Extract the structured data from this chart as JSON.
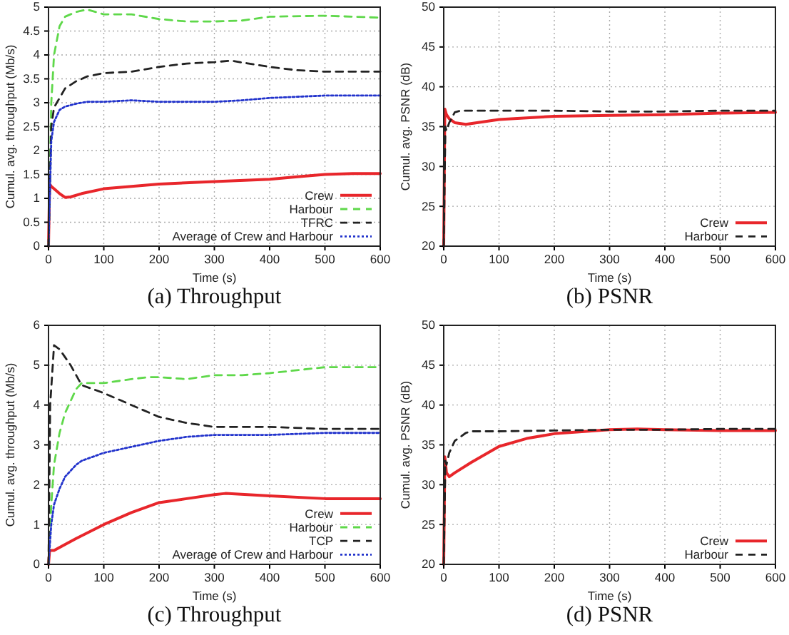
{
  "chart_data": [
    {
      "type": "line",
      "title": "(a)  Throughput",
      "xlabel": "Time (s)",
      "ylabel": "Cumul. avg. throughput (Mb/s)",
      "xlim": [
        0,
        600
      ],
      "xticks": [
        0,
        100,
        200,
        300,
        400,
        500,
        600
      ],
      "ylim": [
        0,
        5
      ],
      "yticks": [
        0,
        0.5,
        1,
        1.5,
        2,
        2.5,
        3,
        3.5,
        4,
        4.5,
        5
      ],
      "grid": true,
      "legend": "bottom right",
      "series": [
        {
          "name": "Crew",
          "color": "#e8262b",
          "line_style": "solid",
          "x": [
            0,
            2,
            5,
            10,
            20,
            30,
            40,
            60,
            100,
            150,
            200,
            300,
            400,
            450,
            500,
            550,
            600
          ],
          "values": [
            0,
            1.3,
            1.25,
            1.2,
            1.1,
            1.02,
            1.03,
            1.1,
            1.2,
            1.25,
            1.3,
            1.35,
            1.4,
            1.45,
            1.5,
            1.52,
            1.52
          ]
        },
        {
          "name": "Harbour",
          "color": "#5fd84a",
          "line_style": "dashed",
          "x": [
            0,
            5,
            10,
            20,
            30,
            50,
            70,
            100,
            150,
            200,
            250,
            300,
            350,
            400,
            500,
            600
          ],
          "values": [
            0,
            3,
            4,
            4.6,
            4.8,
            4.9,
            4.95,
            4.85,
            4.85,
            4.75,
            4.7,
            4.7,
            4.72,
            4.8,
            4.82,
            4.78
          ]
        },
        {
          "name": "TFRC",
          "color": "#222222",
          "line_style": "dashed",
          "x": [
            0,
            5,
            10,
            20,
            30,
            50,
            70,
            100,
            150,
            200,
            250,
            300,
            330,
            400,
            450,
            500,
            600
          ],
          "values": [
            0,
            2.5,
            2.9,
            3.1,
            3.3,
            3.45,
            3.55,
            3.62,
            3.65,
            3.75,
            3.82,
            3.85,
            3.88,
            3.75,
            3.68,
            3.65,
            3.65
          ]
        },
        {
          "name": "Average of Crew and Harbour",
          "color": "#2233cc",
          "line_style": "dotted",
          "x": [
            0,
            5,
            10,
            20,
            30,
            50,
            70,
            100,
            150,
            200,
            300,
            350,
            400,
            500,
            600
          ],
          "values": [
            0,
            2.2,
            2.6,
            2.85,
            2.92,
            2.98,
            3.02,
            3.02,
            3.05,
            3.02,
            3.02,
            3.05,
            3.1,
            3.15,
            3.15
          ]
        }
      ]
    },
    {
      "type": "line",
      "title": "(b)  PSNR",
      "xlabel": "Time (s)",
      "ylabel": "Cumul. avg. PSNR (dB)",
      "xlim": [
        0,
        600
      ],
      "xticks": [
        0,
        100,
        200,
        300,
        400,
        500,
        600
      ],
      "ylim": [
        20,
        50
      ],
      "yticks": [
        20,
        25,
        30,
        35,
        40,
        45,
        50
      ],
      "grid": true,
      "legend": "bottom right",
      "series": [
        {
          "name": "Crew",
          "color": "#e8262b",
          "line_style": "solid",
          "x": [
            0,
            2,
            5,
            10,
            20,
            40,
            60,
            100,
            200,
            300,
            400,
            500,
            600
          ],
          "values": [
            20,
            37.2,
            36.5,
            36,
            35.5,
            35.3,
            35.5,
            35.9,
            36.3,
            36.4,
            36.5,
            36.7,
            36.8
          ]
        },
        {
          "name": "Harbour",
          "color": "#222222",
          "line_style": "dashed",
          "x": [
            0,
            3,
            5,
            10,
            20,
            30,
            100,
            200,
            300,
            400,
            500,
            600
          ],
          "values": [
            20,
            35,
            34.5,
            35.5,
            36.8,
            37,
            37,
            37,
            36.9,
            36.9,
            37,
            37
          ]
        }
      ]
    },
    {
      "type": "line",
      "title": "(c)  Throughput",
      "xlabel": "Time (s)",
      "ylabel": "Cumul. avg. throughput (Mb/s)",
      "xlim": [
        0,
        600
      ],
      "xticks": [
        0,
        100,
        200,
        300,
        400,
        500,
        600
      ],
      "ylim": [
        0,
        6
      ],
      "yticks": [
        0,
        1,
        2,
        3,
        4,
        5,
        6
      ],
      "grid": true,
      "legend": "bottom right",
      "series": [
        {
          "name": "Crew",
          "color": "#e8262b",
          "line_style": "solid",
          "x": [
            0,
            2,
            10,
            50,
            100,
            150,
            200,
            250,
            300,
            320,
            400,
            500,
            600
          ],
          "values": [
            0,
            0.35,
            0.35,
            0.65,
            1,
            1.3,
            1.55,
            1.65,
            1.75,
            1.78,
            1.72,
            1.65,
            1.65
          ]
        },
        {
          "name": "Harbour",
          "color": "#5fd84a",
          "line_style": "dashed",
          "x": [
            0,
            5,
            10,
            20,
            30,
            50,
            60,
            100,
            150,
            180,
            200,
            250,
            300,
            350,
            400,
            500,
            600
          ],
          "values": [
            0,
            1.5,
            2.5,
            3.3,
            3.8,
            4.4,
            4.55,
            4.55,
            4.65,
            4.7,
            4.7,
            4.65,
            4.75,
            4.75,
            4.8,
            4.95,
            4.95
          ]
        },
        {
          "name": "TCP",
          "color": "#222222",
          "line_style": "dashed",
          "x": [
            0,
            3,
            10,
            20,
            40,
            60,
            100,
            150,
            200,
            250,
            300,
            350,
            400,
            500,
            600
          ],
          "values": [
            0,
            4,
            5.5,
            5.4,
            5,
            4.5,
            4.3,
            4,
            3.7,
            3.55,
            3.45,
            3.45,
            3.45,
            3.4,
            3.4
          ]
        },
        {
          "name": "Average of Crew and Harbour",
          "color": "#2233cc",
          "line_style": "dotted",
          "x": [
            0,
            5,
            10,
            20,
            30,
            50,
            60,
            100,
            150,
            200,
            250,
            300,
            400,
            500,
            600
          ],
          "values": [
            0,
            1,
            1.5,
            1.9,
            2.2,
            2.5,
            2.6,
            2.8,
            2.95,
            3.1,
            3.2,
            3.25,
            3.25,
            3.3,
            3.3
          ]
        }
      ]
    },
    {
      "type": "line",
      "title": "(d)  PSNR",
      "xlabel": "Time (s)",
      "ylabel": "Cumul. avg. PSNR (dB)",
      "xlim": [
        0,
        600
      ],
      "xticks": [
        0,
        100,
        200,
        300,
        400,
        500,
        600
      ],
      "ylim": [
        20,
        50
      ],
      "yticks": [
        20,
        25,
        30,
        35,
        40,
        45,
        50
      ],
      "grid": true,
      "legend": "bottom right",
      "series": [
        {
          "name": "Crew",
          "color": "#e8262b",
          "line_style": "solid",
          "x": [
            0,
            2,
            5,
            10,
            20,
            50,
            100,
            150,
            200,
            300,
            350,
            400,
            500,
            600
          ],
          "values": [
            20,
            33.5,
            31.5,
            31,
            31.5,
            32.8,
            34.8,
            35.8,
            36.4,
            36.9,
            37,
            36.9,
            36.8,
            36.8
          ]
        },
        {
          "name": "Harbour",
          "color": "#222222",
          "line_style": "dashed",
          "x": [
            0,
            3,
            5,
            10,
            20,
            40,
            50,
            100,
            200,
            300,
            400,
            500,
            600
          ],
          "values": [
            20,
            33,
            32.5,
            34,
            35.5,
            36.5,
            36.7,
            36.7,
            36.8,
            36.9,
            36.9,
            37,
            37
          ]
        }
      ]
    }
  ]
}
